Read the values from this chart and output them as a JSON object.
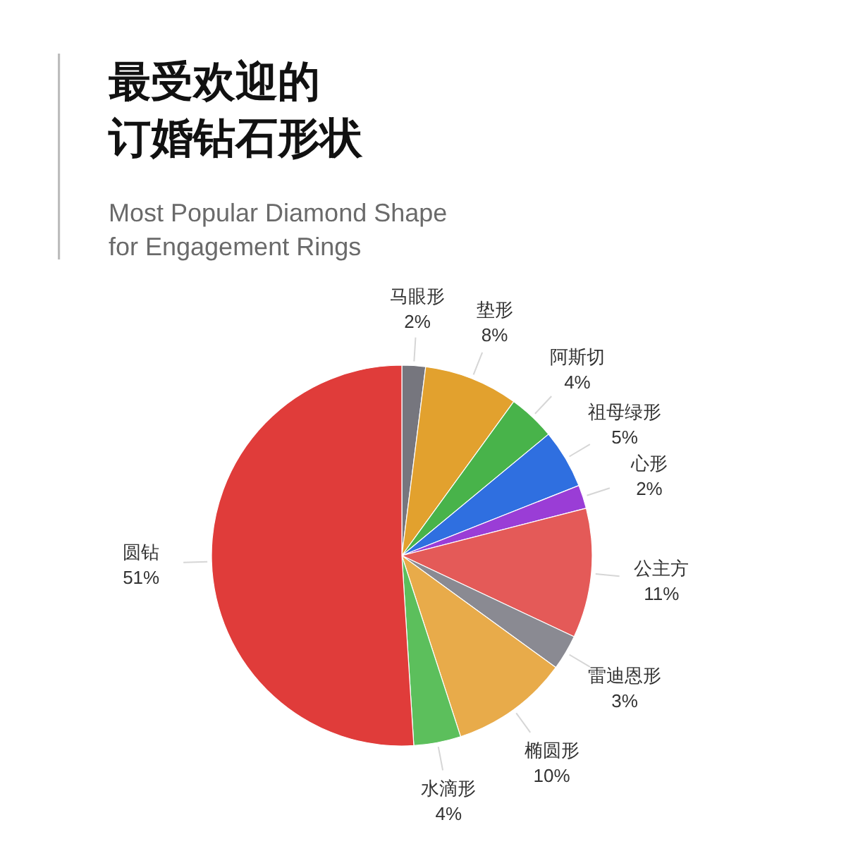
{
  "chart_data": {
    "type": "pie",
    "title": "最受欢迎的订婚钻石形状",
    "subtitle": "Most Popular Diamond Shape for Engagement Rings",
    "categories": [
      "马眼形",
      "垫形",
      "阿斯切",
      "祖母绿形",
      "心形",
      "公主方",
      "雷迪恩形",
      "椭圆形",
      "水滴形",
      "圆钻"
    ],
    "values": [
      2,
      8,
      4,
      5,
      2,
      11,
      3,
      10,
      4,
      51
    ],
    "value_labels": [
      "2%",
      "8%",
      "4%",
      "5%",
      "2%",
      "11%",
      "3%",
      "10%",
      "4%",
      "51%"
    ],
    "colors": [
      "#76767e",
      "#e2a12e",
      "#48b34a",
      "#2f6fe0",
      "#9a3dd6",
      "#e45a58",
      "#8a8a92",
      "#e8ab4a",
      "#5cbf5c",
      "#e03c3a"
    ]
  }
}
